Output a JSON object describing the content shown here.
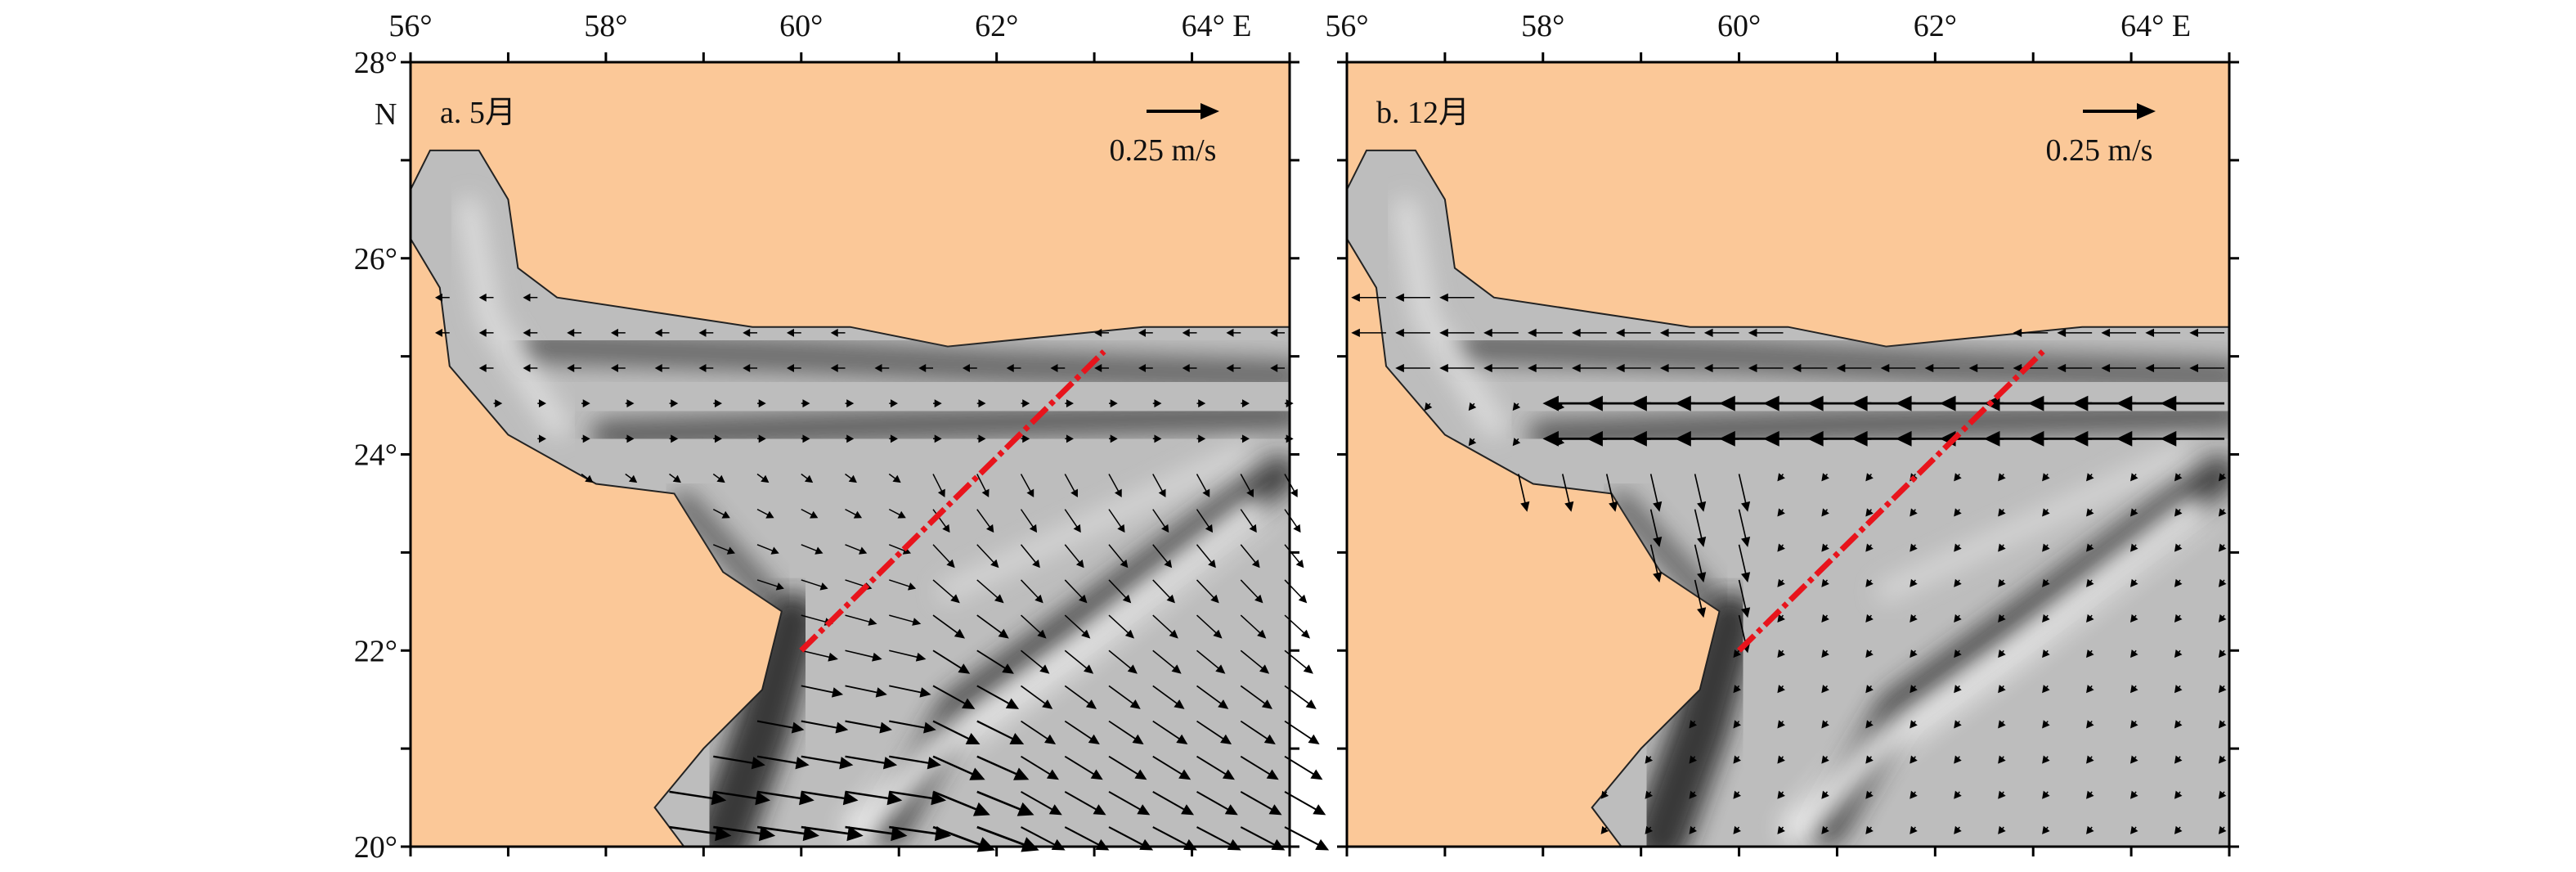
{
  "x_tick_labels": [
    "56°",
    "58°",
    "60°",
    "62°",
    "64° E"
  ],
  "y_tick_labels": [
    "28°",
    "26°",
    "24°",
    "22°",
    "20°"
  ],
  "y_axis_unit": "N",
  "panels": [
    {
      "label": "a. 5月",
      "scale_label": "0.25 m/s"
    },
    {
      "label": "b. 12月",
      "scale_label": "0.25 m/s"
    }
  ]
}
